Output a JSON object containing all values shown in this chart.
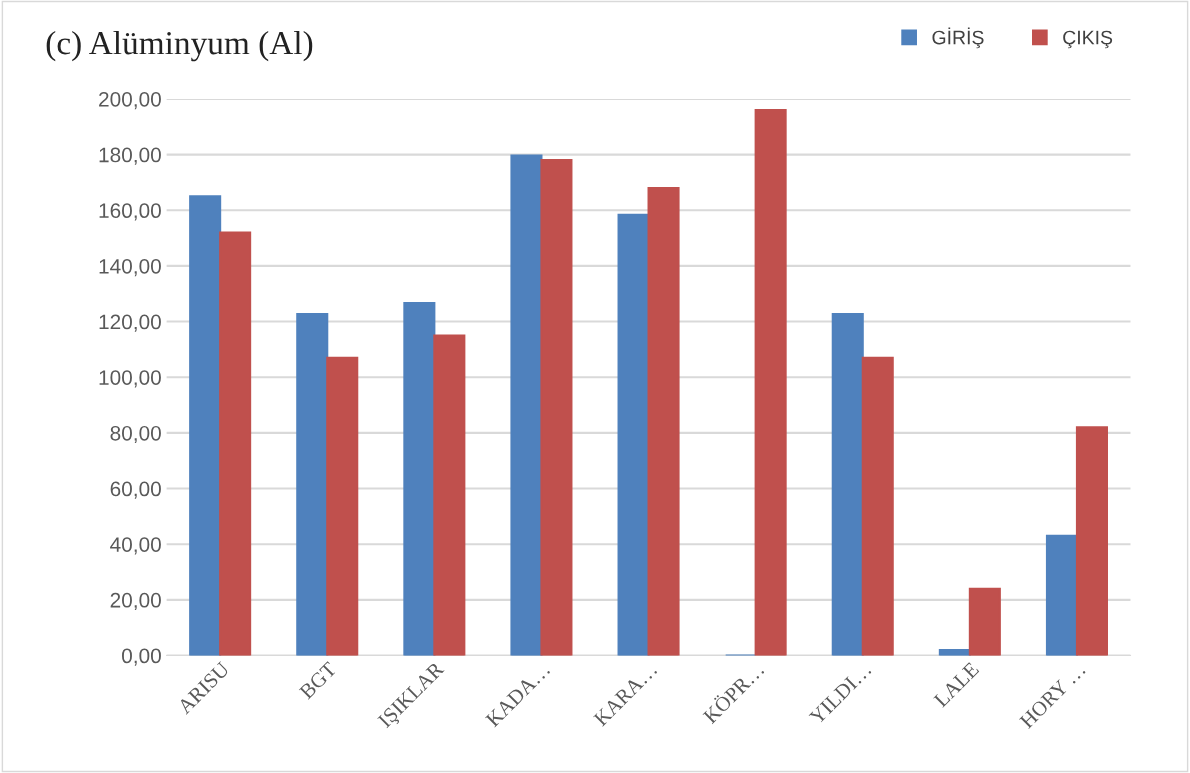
{
  "chart_data": {
    "type": "bar",
    "title": "(c) Alüminyum (Al)",
    "categories": [
      "ARISU",
      "BGT",
      "IŞIKLAR",
      "KADA…",
      "KARA…",
      "KÖPR…",
      "YILDI…",
      "LALE",
      "HORY …"
    ],
    "series": [
      {
        "name": "GİRİŞ",
        "color": "#4f81bd",
        "values": [
          165,
          122.7,
          126.7,
          179.7,
          158.4,
          0,
          122.7,
          2,
          43
        ]
      },
      {
        "name": "ÇIKIŞ",
        "color": "#c0504d",
        "values": [
          152,
          107,
          115,
          178,
          168,
          196,
          107,
          24,
          82
        ]
      }
    ],
    "ylim": [
      0,
      200
    ],
    "yticks": [
      {
        "value": 0,
        "label": "0,00"
      },
      {
        "value": 20,
        "label": "20,00"
      },
      {
        "value": 40,
        "label": "40,00"
      },
      {
        "value": 60,
        "label": "60,00"
      },
      {
        "value": 80,
        "label": "80,00"
      },
      {
        "value": 100,
        "label": "100,00"
      },
      {
        "value": 120,
        "label": "120,00"
      },
      {
        "value": 140,
        "label": "140,00"
      },
      {
        "value": 160,
        "label": "160,00"
      },
      {
        "value": 180,
        "label": "180,00"
      },
      {
        "value": 200,
        "label": "200,00"
      }
    ],
    "grid": "y",
    "legend": "top right"
  }
}
